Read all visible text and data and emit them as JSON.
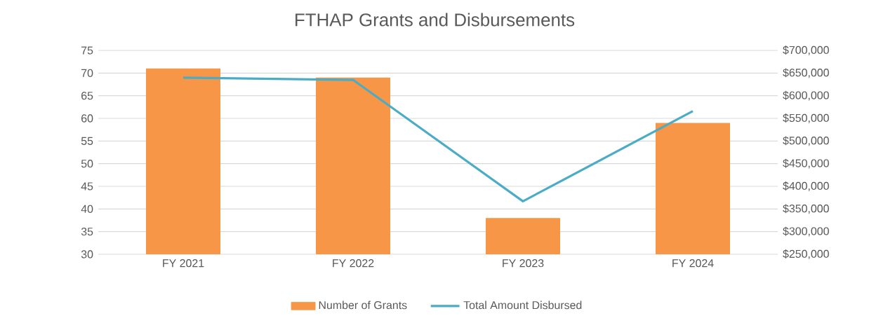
{
  "chart_data": {
    "type": "bar",
    "title": "FTHAP Grants and Disbursements",
    "categories": [
      "FY 2021",
      "FY 2022",
      "FY 2023",
      "FY 2024"
    ],
    "series": [
      {
        "name": "Number of Grants",
        "color": "#f79646",
        "values": [
          71,
          69,
          38,
          59
        ]
      },
      {
        "name": "Total Amount Disbursed",
        "type": "line",
        "axis": "y2",
        "color": "#4bacc6",
        "values": [
          640000,
          635000,
          367000,
          566000
        ]
      }
    ],
    "ylim": [
      30,
      75
    ],
    "yticks": [
      30,
      35,
      40,
      45,
      50,
      55,
      60,
      65,
      70,
      75
    ],
    "y2lim": [
      250000,
      700000
    ],
    "y2ticks": [
      {
        "value": 250000,
        "label": "$250,000"
      },
      {
        "value": 300000,
        "label": "$300,000"
      },
      {
        "value": 350000,
        "label": "$350,000"
      },
      {
        "value": 400000,
        "label": "$400,000"
      },
      {
        "value": 450000,
        "label": "$450,000"
      },
      {
        "value": 500000,
        "label": "$500,000"
      },
      {
        "value": 550000,
        "label": "$550,000"
      },
      {
        "value": 600000,
        "label": "$600,000"
      },
      {
        "value": 650000,
        "label": "$650,000"
      },
      {
        "value": 700000,
        "label": "$700,000"
      }
    ],
    "grid": "y",
    "legend": "bottom",
    "marker": "none",
    "line_style": "solid"
  }
}
